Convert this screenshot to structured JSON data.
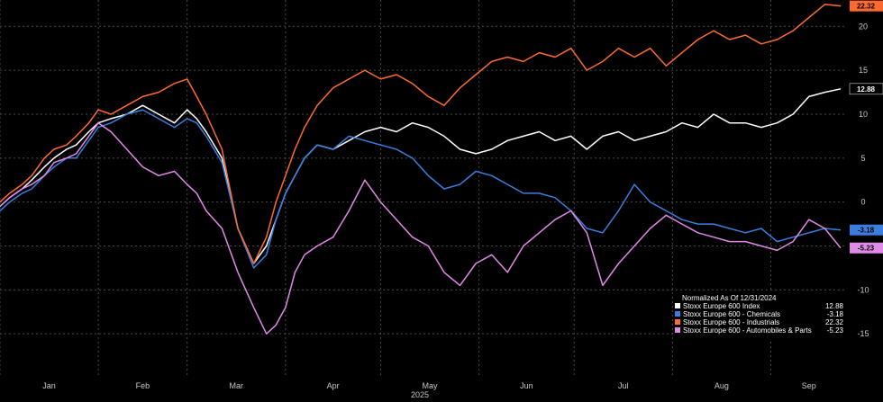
{
  "chart_data": {
    "type": "line",
    "xlabel": "2025",
    "ylabel": "",
    "ylim": [
      -20,
      23
    ],
    "x_tick_labels": [
      "Jan",
      "Feb",
      "Mar",
      "Apr",
      "May",
      "Jun",
      "Jul",
      "Aug",
      "Sep"
    ],
    "y_ticks": [
      20,
      15,
      10,
      5,
      0,
      -5,
      -10,
      -15
    ],
    "grid": true,
    "legend_title": "Normalized As Of 12/31/2024",
    "legend_position": "bottom-right",
    "series": [
      {
        "name": "Stoxx Europe 600 Index",
        "color": "#ffffff",
        "last_label": "12.88",
        "x": [
          0,
          3,
          7,
          10,
          14,
          17,
          21,
          24,
          28,
          31,
          35,
          40,
          45,
          50,
          55,
          59,
          62,
          65,
          70,
          75,
          80,
          84,
          87,
          90,
          93,
          96,
          100,
          105,
          110,
          115,
          120,
          125,
          130,
          135,
          140,
          145,
          150,
          155,
          160,
          165,
          170,
          175,
          180,
          185,
          190,
          195,
          200,
          205,
          210,
          215,
          220,
          225,
          230,
          235,
          240,
          245,
          250,
          255,
          260,
          265
        ],
        "values": [
          -0.5,
          0.5,
          1.5,
          2.5,
          4,
          5,
          6,
          6.5,
          8,
          9,
          9.5,
          10,
          11,
          10,
          9,
          10.5,
          9.5,
          8,
          5,
          -3,
          -7,
          -5,
          -2,
          1,
          3,
          5,
          6.5,
          6,
          7,
          8,
          8.5,
          8,
          9,
          8.5,
          7.5,
          6,
          5.5,
          6,
          7,
          7.5,
          8,
          7,
          7.5,
          6,
          7.5,
          8,
          7,
          7.5,
          8,
          9,
          8.5,
          10,
          9,
          9,
          8.5,
          9,
          10,
          12,
          12.5,
          12.88
        ]
      },
      {
        "name": "Stoxx Europe 600 - Chemicals",
        "color": "#3a7fe0",
        "last_label": "-3.18",
        "x": [
          0,
          3,
          7,
          10,
          14,
          17,
          21,
          24,
          28,
          31,
          35,
          40,
          45,
          50,
          55,
          59,
          62,
          65,
          70,
          75,
          80,
          84,
          87,
          90,
          93,
          96,
          100,
          105,
          110,
          115,
          120,
          125,
          130,
          135,
          140,
          145,
          150,
          155,
          160,
          165,
          170,
          175,
          180,
          185,
          190,
          195,
          200,
          205,
          210,
          215,
          220,
          225,
          230,
          235,
          240,
          245,
          250,
          255,
          260,
          265
        ],
        "values": [
          -1,
          0,
          1,
          1.5,
          3,
          4,
          5,
          5,
          7,
          8.5,
          9,
          10,
          10.5,
          9.5,
          8.5,
          9.5,
          9,
          7.5,
          4.5,
          -3,
          -7.5,
          -6,
          -2,
          1,
          3,
          5,
          6.5,
          6,
          7.5,
          7,
          6.5,
          6,
          5,
          3,
          1.5,
          2,
          3.5,
          3,
          2,
          1,
          1,
          0.5,
          -1,
          -3,
          -3.5,
          -1,
          2,
          0,
          -1,
          -2,
          -2.5,
          -2.5,
          -3,
          -3.5,
          -3,
          -4.5,
          -4,
          -3.5,
          -3,
          -3.18
        ]
      },
      {
        "name": "Stoxx Europe 600 - Industrials",
        "color": "#ff6a30",
        "last_label": "22.32",
        "x": [
          0,
          3,
          7,
          10,
          14,
          17,
          21,
          24,
          28,
          31,
          35,
          40,
          45,
          50,
          55,
          59,
          62,
          65,
          70,
          75,
          80,
          84,
          87,
          90,
          93,
          96,
          100,
          105,
          110,
          115,
          120,
          125,
          130,
          135,
          140,
          145,
          150,
          155,
          160,
          165,
          170,
          175,
          180,
          185,
          190,
          195,
          200,
          205,
          210,
          215,
          220,
          225,
          230,
          235,
          240,
          245,
          250,
          255,
          260,
          265
        ],
        "values": [
          0,
          1,
          2,
          3,
          5,
          6,
          6.5,
          7.5,
          9,
          10.5,
          10,
          11,
          12,
          12.5,
          13.5,
          14,
          12,
          10,
          6,
          -3,
          -7,
          -4,
          0,
          3,
          6,
          8.5,
          11,
          13,
          14,
          15,
          14,
          14.5,
          13.5,
          12,
          11,
          13,
          14.5,
          16,
          16.5,
          16,
          17,
          16.5,
          17.5,
          15,
          16,
          17.5,
          16.5,
          17.5,
          15.5,
          17,
          18.5,
          19.5,
          18.5,
          19,
          18,
          18.5,
          19.5,
          21,
          22.5,
          22.32
        ]
      },
      {
        "name": "Stoxx Europe 600 - Automobiles & Parts",
        "color": "#e28ae8",
        "last_label": "-5.23",
        "x": [
          0,
          3,
          7,
          10,
          14,
          17,
          21,
          24,
          28,
          31,
          35,
          40,
          45,
          50,
          55,
          59,
          62,
          65,
          70,
          75,
          80,
          84,
          87,
          90,
          93,
          96,
          100,
          105,
          110,
          115,
          120,
          125,
          130,
          135,
          140,
          145,
          150,
          155,
          160,
          165,
          170,
          175,
          180,
          185,
          190,
          195,
          200,
          205,
          210,
          215,
          220,
          225,
          230,
          235,
          240,
          245,
          250,
          255,
          260,
          265
        ],
        "values": [
          -0.5,
          0.5,
          1.5,
          2,
          3,
          4.5,
          5,
          5.5,
          7.5,
          9,
          8,
          6,
          4,
          3,
          3.5,
          2,
          1,
          -1,
          -3,
          -8,
          -12,
          -15,
          -14,
          -12,
          -8,
          -6,
          -5,
          -4,
          -1,
          2.5,
          0,
          -2,
          -4,
          -5,
          -8,
          -9.5,
          -7,
          -6,
          -8,
          -5,
          -3.5,
          -2,
          -1,
          -3.5,
          -9.5,
          -7,
          -5,
          -3,
          -1.5,
          -2.5,
          -3.5,
          -4,
          -4.5,
          -4.5,
          -5,
          -5.5,
          -4.5,
          -2,
          -3,
          -5.23
        ]
      }
    ]
  }
}
